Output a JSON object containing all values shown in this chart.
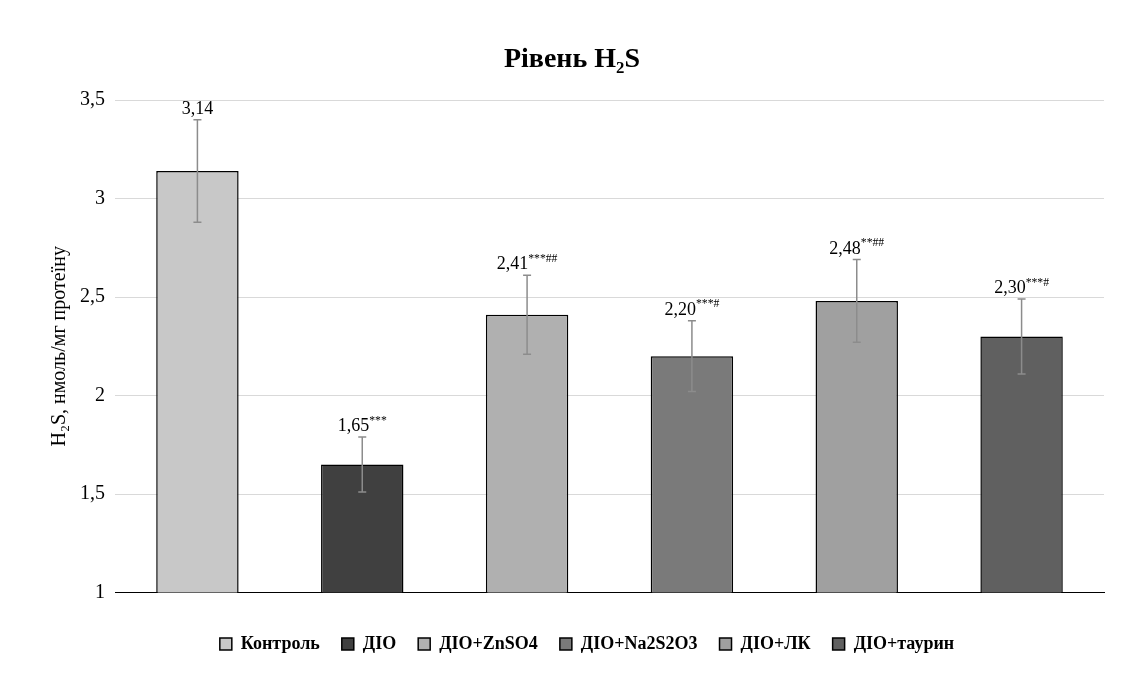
{
  "chart_data": {
    "type": "bar",
    "title": "Рівень H₂S",
    "ylabel": "H₂S, нмоль/мг протеїну",
    "categories": [
      null
    ],
    "series": [
      {
        "name": "Контроль",
        "color": "#c8c8c8",
        "values": [
          3.14
        ],
        "errors": [
          0.26
        ],
        "value_labels": [
          "3,14"
        ]
      },
      {
        "name": "ДІО",
        "color": "#404040",
        "values": [
          1.65
        ],
        "errors": [
          0.14
        ],
        "value_labels": [
          "1,65$^{***}$"
        ]
      },
      {
        "name": "ДІО+ZnSO4",
        "color": "#b0b0b0",
        "values": [
          2.41
        ],
        "errors": [
          0.2
        ],
        "value_labels": [
          "2,41$^{***##}$"
        ]
      },
      {
        "name": "ДІО+Na2S2O3",
        "color": "#7a7a7a",
        "values": [
          2.2
        ],
        "errors": [
          0.18
        ],
        "value_labels": [
          "2,20$^{***#}$"
        ]
      },
      {
        "name": "ДІО+ЛК",
        "color": "#a0a0a0",
        "values": [
          2.48
        ],
        "errors": [
          0.21
        ],
        "value_labels": [
          "2,48$^{**##}$"
        ]
      },
      {
        "name": "ДІО+таурин",
        "color": "#606060",
        "values": [
          2.3
        ],
        "errors": [
          0.19
        ],
        "value_labels": [
          "2,30$^{***#}$"
        ]
      }
    ],
    "ylim": [
      1,
      3.5
    ],
    "yticks": [
      {
        "value": 1,
        "label": "1"
      },
      {
        "value": 1.5,
        "label": "1,5"
      },
      {
        "value": 2,
        "label": "2"
      },
      {
        "value": 2.5,
        "label": "2,5"
      },
      {
        "value": 3,
        "label": "3"
      },
      {
        "value": 3.5,
        "label": "3,5"
      }
    ],
    "grid": "y",
    "legend": "bottom"
  }
}
